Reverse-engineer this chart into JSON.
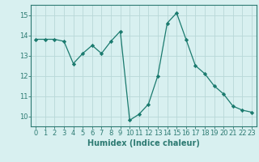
{
  "x": [
    0,
    1,
    2,
    3,
    4,
    5,
    6,
    7,
    8,
    9,
    10,
    11,
    12,
    13,
    14,
    15,
    16,
    17,
    18,
    19,
    20,
    21,
    22,
    23
  ],
  "y": [
    13.8,
    13.8,
    13.8,
    13.7,
    12.6,
    13.1,
    13.5,
    13.1,
    13.7,
    14.2,
    9.8,
    10.1,
    10.6,
    12.0,
    14.6,
    15.1,
    13.8,
    12.5,
    12.1,
    11.5,
    11.1,
    10.5,
    10.3,
    10.2
  ],
  "line_color": "#1a7a6e",
  "marker": "D",
  "marker_size": 2.2,
  "bg_color": "#d8f0f0",
  "grid_color": "#b8d8d8",
  "xlabel": "Humidex (Indice chaleur)",
  "ylim": [
    9.5,
    15.5
  ],
  "xlim": [
    -0.5,
    23.5
  ],
  "yticks": [
    10,
    11,
    12,
    13,
    14,
    15
  ],
  "xticks": [
    0,
    1,
    2,
    3,
    4,
    5,
    6,
    7,
    8,
    9,
    10,
    11,
    12,
    13,
    14,
    15,
    16,
    17,
    18,
    19,
    20,
    21,
    22,
    23
  ],
  "axis_color": "#2d7a72",
  "tick_color": "#2d7a72",
  "label_fontsize": 7,
  "tick_fontsize": 6
}
